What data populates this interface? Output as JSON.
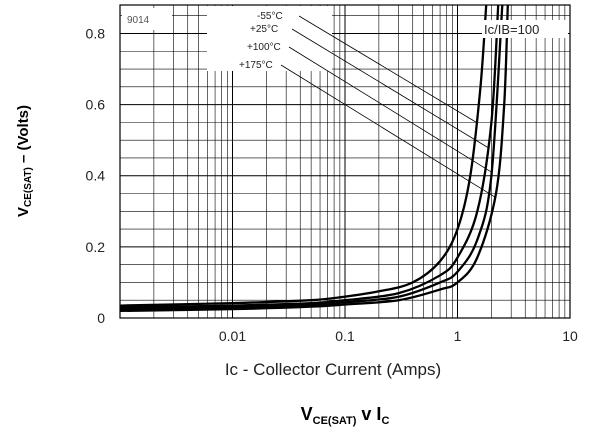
{
  "chart_data": {
    "type": "line",
    "part_number": "9014",
    "condition": {
      "ic": "Ic",
      "ib": "IB",
      "value": "=100"
    },
    "x_axis": {
      "label_main": "Ic",
      "label_rest": " - Collector Current (Amps)",
      "scale": "log",
      "range": [
        0.001,
        10
      ],
      "ticks": [
        {
          "value": 0.01,
          "label": "0.01"
        },
        {
          "value": 0.1,
          "label": "0.1"
        },
        {
          "value": 1,
          "label": "1"
        },
        {
          "value": 10,
          "label": "10"
        }
      ]
    },
    "y_axis": {
      "label_main": "V",
      "label_sub": "CE(SAT)",
      "label_rest": " – (Volts)",
      "range": [
        0,
        0.88
      ],
      "ticks": [
        {
          "value": 0,
          "label": "0"
        },
        {
          "value": 0.2,
          "label": "0.2"
        },
        {
          "value": 0.4,
          "label": "0.4"
        },
        {
          "value": 0.6,
          "label": "0.6"
        },
        {
          "value": 0.8,
          "label": "0.8"
        }
      ]
    },
    "caption": {
      "v": "V",
      "v_sub": "CE(SAT)",
      "mid": " v I",
      "i_sub": "C"
    },
    "grid": true,
    "series": [
      {
        "name": "-55°C",
        "points": [
          [
            0.001,
            0.035
          ],
          [
            0.01,
            0.042
          ],
          [
            0.05,
            0.05
          ],
          [
            0.1,
            0.06
          ],
          [
            0.2,
            0.075
          ],
          [
            0.4,
            0.1
          ],
          [
            0.7,
            0.16
          ],
          [
            1.0,
            0.25
          ],
          [
            1.3,
            0.4
          ],
          [
            1.6,
            0.65
          ],
          [
            1.8,
            0.88
          ]
        ]
      },
      {
        "name": "+25°C",
        "points": [
          [
            0.001,
            0.03
          ],
          [
            0.01,
            0.035
          ],
          [
            0.05,
            0.042
          ],
          [
            0.1,
            0.05
          ],
          [
            0.3,
            0.07
          ],
          [
            0.7,
            0.12
          ],
          [
            1.0,
            0.17
          ],
          [
            1.5,
            0.3
          ],
          [
            2.0,
            0.55
          ],
          [
            2.3,
            0.88
          ]
        ]
      },
      {
        "name": "+100°C",
        "points": [
          [
            0.001,
            0.025
          ],
          [
            0.01,
            0.03
          ],
          [
            0.05,
            0.037
          ],
          [
            0.1,
            0.044
          ],
          [
            0.3,
            0.06
          ],
          [
            0.7,
            0.1
          ],
          [
            1.0,
            0.13
          ],
          [
            1.5,
            0.22
          ],
          [
            2.0,
            0.4
          ],
          [
            2.5,
            0.88
          ]
        ]
      },
      {
        "name": "+175°C",
        "points": [
          [
            0.001,
            0.02
          ],
          [
            0.01,
            0.025
          ],
          [
            0.05,
            0.032
          ],
          [
            0.1,
            0.038
          ],
          [
            0.3,
            0.05
          ],
          [
            0.7,
            0.08
          ],
          [
            1.0,
            0.1
          ],
          [
            1.5,
            0.17
          ],
          [
            2.2,
            0.35
          ],
          [
            2.6,
            0.6
          ],
          [
            2.8,
            0.88
          ]
        ]
      }
    ]
  }
}
